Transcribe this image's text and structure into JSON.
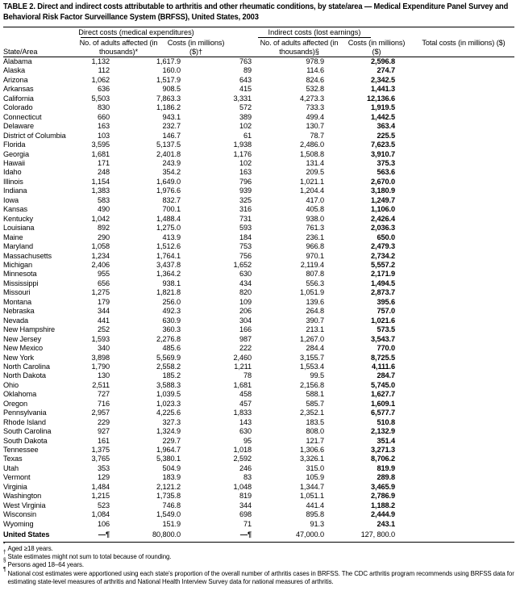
{
  "title": "TABLE 2. Direct and indirect costs attributable to arthritis and other rheumatic conditions, by state/area — Medical Expenditure Panel Survey and Behavioral Risk Factor Surveillance System (BRFSS), United States, 2003",
  "groups": {
    "direct": "Direct costs (medical expenditures)",
    "indirect": "Indirect costs (lost earnings)"
  },
  "columns": {
    "state": "State/Area",
    "direct_adults": "No. of adults affected (in thousands)*",
    "direct_costs": "Costs (in millions) ($)†",
    "indirect_adults": "No. of adults affected (in thousands)§",
    "indirect_costs": "Costs (in millions) ($)",
    "total": "Total costs (in millions) ($)"
  },
  "rows": [
    [
      "Alabama",
      "1,132",
      "1,617.9",
      "763",
      "978.9",
      "2,596.8"
    ],
    [
      "Alaska",
      "112",
      "160.0",
      "89",
      "114.6",
      "274.7"
    ],
    [
      "Arizona",
      "1,062",
      "1,517.9",
      "643",
      "824.6",
      "2,342.5"
    ],
    [
      "Arkansas",
      "636",
      "908.5",
      "415",
      "532.8",
      "1,441.3"
    ],
    [
      "California",
      "5,503",
      "7,863.3",
      "3,331",
      "4,273.3",
      "12,136.6"
    ],
    [
      "Colorado",
      "830",
      "1,186.2",
      "572",
      "733.3",
      "1,919.5"
    ],
    [
      "Connecticut",
      "660",
      "943.1",
      "389",
      "499.4",
      "1,442.5"
    ],
    [
      "Delaware",
      "163",
      "232.7",
      "102",
      "130.7",
      "363.4"
    ],
    [
      "District of Columbia",
      "103",
      "146.7",
      "61",
      "78.7",
      "225.5"
    ],
    [
      "Florida",
      "3,595",
      "5,137.5",
      "1,938",
      "2,486.0",
      "7,623.5"
    ],
    [
      "Georgia",
      "1,681",
      "2,401.8",
      "1,176",
      "1,508.8",
      "3,910.7"
    ],
    [
      "Hawaii",
      "171",
      "243.9",
      "102",
      "131.4",
      "375.3"
    ],
    [
      "Idaho",
      "248",
      "354.2",
      "163",
      "209.5",
      "563.6"
    ],
    [
      "Illinois",
      "1,154",
      "1,649.0",
      "796",
      "1,021.1",
      "2,670.0"
    ],
    [
      "Indiana",
      "1,383",
      "1,976.6",
      "939",
      "1,204.4",
      "3,180.9"
    ],
    [
      "Iowa",
      "583",
      "832.7",
      "325",
      "417.0",
      "1,249.7"
    ],
    [
      "Kansas",
      "490",
      "700.1",
      "316",
      "405.8",
      "1,106.0"
    ],
    [
      "Kentucky",
      "1,042",
      "1,488.4",
      "731",
      "938.0",
      "2,426.4"
    ],
    [
      "Louisiana",
      "892",
      "1,275.0",
      "593",
      "761.3",
      "2,036.3"
    ],
    [
      "Maine",
      "290",
      "413.9",
      "184",
      "236.1",
      "650.0"
    ],
    [
      "Maryland",
      "1,058",
      "1,512.6",
      "753",
      "966.8",
      "2,479.3"
    ],
    [
      "Massachusetts",
      "1,234",
      "1,764.1",
      "756",
      "970.1",
      "2,734.2"
    ],
    [
      "Michigan",
      "2,406",
      "3,437.8",
      "1,652",
      "2,119.4",
      "5,557.2"
    ],
    [
      "Minnesota",
      "955",
      "1,364.2",
      "630",
      "807.8",
      "2,171.9"
    ],
    [
      "Mississippi",
      "656",
      "938.1",
      "434",
      "556.3",
      "1,494.5"
    ],
    [
      "Missouri",
      "1,275",
      "1,821.8",
      "820",
      "1,051.9",
      "2,873.7"
    ],
    [
      "Montana",
      "179",
      "256.0",
      "109",
      "139.6",
      "395.6"
    ],
    [
      "Nebraska",
      "344",
      "492.3",
      "206",
      "264.8",
      "757.0"
    ],
    [
      "Nevada",
      "441",
      "630.9",
      "304",
      "390.7",
      "1,021.6"
    ],
    [
      "New Hampshire",
      "252",
      "360.3",
      "166",
      "213.1",
      "573.5"
    ],
    [
      "New Jersey",
      "1,593",
      "2,276.8",
      "987",
      "1,267.0",
      "3,543.7"
    ],
    [
      "New Mexico",
      "340",
      "485.6",
      "222",
      "284.4",
      "770.0"
    ],
    [
      "New York",
      "3,898",
      "5,569.9",
      "2,460",
      "3,155.7",
      "8,725.5"
    ],
    [
      "North Carolina",
      "1,790",
      "2,558.2",
      "1,211",
      "1,553.4",
      "4,111.6"
    ],
    [
      "North Dakota",
      "130",
      "185.2",
      "78",
      "99.5",
      "284.7"
    ],
    [
      "Ohio",
      "2,511",
      "3,588.3",
      "1,681",
      "2,156.8",
      "5,745.0"
    ],
    [
      "Oklahoma",
      "727",
      "1,039.5",
      "458",
      "588.1",
      "1,627.7"
    ],
    [
      "Oregon",
      "716",
      "1,023.3",
      "457",
      "585.7",
      "1,609.1"
    ],
    [
      "Pennsylvania",
      "2,957",
      "4,225.6",
      "1,833",
      "2,352.1",
      "6,577.7"
    ],
    [
      "Rhode Island",
      "229",
      "327.3",
      "143",
      "183.5",
      "510.8"
    ],
    [
      "South Carolina",
      "927",
      "1,324.9",
      "630",
      "808.0",
      "2,132.9"
    ],
    [
      "South Dakota",
      "161",
      "229.7",
      "95",
      "121.7",
      "351.4"
    ],
    [
      "Tennessee",
      "1,375",
      "1,964.7",
      "1,018",
      "1,306.6",
      "3,271.3"
    ],
    [
      "Texas",
      "3,765",
      "5,380.1",
      "2,592",
      "3,326.1",
      "8,706.2"
    ],
    [
      "Utah",
      "353",
      "504.9",
      "246",
      "315.0",
      "819.9"
    ],
    [
      "Vermont",
      "129",
      "183.9",
      "83",
      "105.9",
      "289.8"
    ],
    [
      "Virginia",
      "1,484",
      "2,121.2",
      "1,048",
      "1,344.7",
      "3,465.9"
    ],
    [
      "Washington",
      "1,215",
      "1,735.8",
      "819",
      "1,051.1",
      "2,786.9"
    ],
    [
      "West Virginia",
      "523",
      "746.8",
      "344",
      "441.4",
      "1,188.2"
    ],
    [
      "Wisconsin",
      "1,084",
      "1,549.0",
      "698",
      "895.8",
      "2,444.9"
    ],
    [
      "Wyoming",
      "106",
      "151.9",
      "71",
      "91.3",
      "243.1"
    ]
  ],
  "total_row": [
    "United States",
    "—¶",
    "80,800.0",
    "—¶",
    "47,000.0",
    "127, 800.0"
  ],
  "footnotes": [
    {
      "mark": "*",
      "text": "Aged ≥18 years."
    },
    {
      "mark": "†",
      "text": "State estimates might not sum to total because of rounding."
    },
    {
      "mark": "§",
      "text": "Persons aged 18–64 years."
    },
    {
      "mark": "¶",
      "text": "National cost estimates were apportioned using each state's proportion of the overall number of arthritis cases in BRFSS. The CDC arthritis program recommends using BRFSS data for estimating state-level measures of arthritis and National Health Interview Survey data for national measures of arthritis."
    }
  ]
}
